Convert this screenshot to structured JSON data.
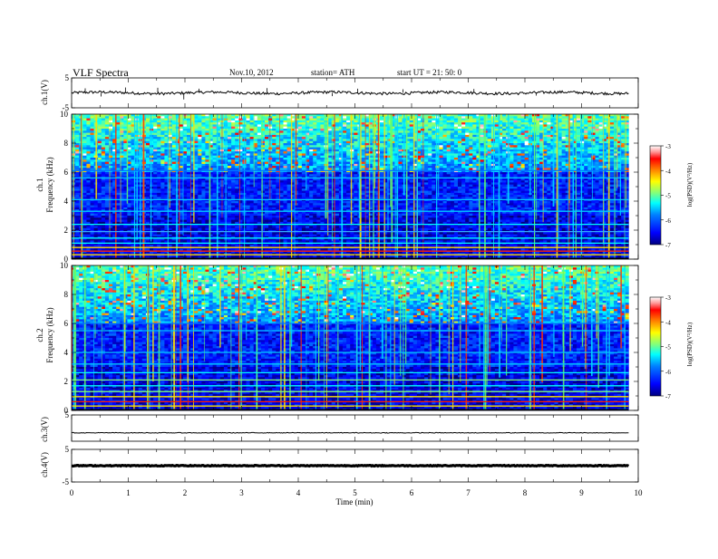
{
  "header": {
    "title": "VLF  Spectra",
    "date": "Nov.10, 2012",
    "station": "station= ATH",
    "start": "start  UT  =    21: 50: 0"
  },
  "labels": {
    "ch1": "ch.1(V)",
    "ch3": "ch.3(V)",
    "ch4": "ch.4(V)",
    "spec1_ch": "ch.1",
    "spec2_ch": "ch.2",
    "freq": "Frequency  (kHz)",
    "xlabel": "Time  (min)",
    "colorbar": "log(PSD)(V²/Hz)"
  },
  "colors": {
    "spectrogram_background": "#0a2c8c",
    "jet": [
      "#00007f",
      "#0000ff",
      "#007fff",
      "#00ffff",
      "#7fff7f",
      "#ffff00",
      "#ff7f00",
      "#ff0000",
      "#ff9999",
      "#ffffff"
    ]
  },
  "chart_data": [
    {
      "type": "line",
      "name": "ch1-waveform",
      "ylabel": "ch.1(V)",
      "ylim": [
        -5,
        5
      ],
      "yticks": [
        "5",
        "-5"
      ],
      "xlim": [
        0,
        10
      ],
      "data_end_min": 9.83,
      "baseline": 0,
      "spikes": [
        [
          0.24,
          1.5
        ],
        [
          0.52,
          -1.2
        ],
        [
          0.95,
          1.8
        ],
        [
          1.52,
          1.7
        ],
        [
          1.98,
          -2.2
        ],
        [
          2.25,
          1.4
        ],
        [
          3.45,
          1.6
        ],
        [
          4.6,
          -1.1
        ],
        [
          5.05,
          1.4
        ],
        [
          5.85,
          1.2
        ],
        [
          7.1,
          1.3
        ],
        [
          8.2,
          -0.9
        ]
      ]
    },
    {
      "type": "heatmap",
      "name": "ch1-spectrogram",
      "ylabel": "Frequency  (kHz)",
      "xlim": [
        0,
        10
      ],
      "ylim": [
        0,
        10
      ],
      "yticks": [
        "0",
        "2",
        "4",
        "6",
        "8",
        "10"
      ],
      "colorbar": {
        "label": "log(PSD)(V²/Hz)",
        "range": [
          -7,
          -3
        ],
        "ticks": [
          "-3",
          "-4",
          "-5",
          "-6",
          "-7"
        ]
      }
    },
    {
      "type": "heatmap",
      "name": "ch2-spectrogram",
      "ylabel": "Frequency  (kHz)",
      "xlim": [
        0,
        10
      ],
      "ylim": [
        0,
        10
      ],
      "yticks": [
        "0",
        "2",
        "4",
        "6",
        "8",
        "10"
      ],
      "colorbar": {
        "label": "log(PSD)(V²/Hz)",
        "range": [
          -7,
          -3
        ],
        "ticks": [
          "-3",
          "-4",
          "-5",
          "-6",
          "-7"
        ]
      }
    },
    {
      "type": "line",
      "name": "ch3-waveform",
      "ylabel": "ch.3(V)",
      "ylim": [
        -5,
        5
      ],
      "yticks": [
        "5"
      ],
      "xlim": [
        0,
        10
      ],
      "data_end_min": 9.83,
      "baseline": -1.8
    },
    {
      "type": "line",
      "name": "ch4-waveform",
      "ylabel": "ch.4(V)",
      "ylim": [
        -5,
        5
      ],
      "yticks": [
        "5",
        "-5"
      ],
      "xlim": [
        0,
        10
      ],
      "data_end_min": 9.83,
      "baseline": 0,
      "xlabel": "Time  (min)",
      "xticks": [
        "0",
        "1",
        "2",
        "3",
        "4",
        "5",
        "6",
        "7",
        "8",
        "9",
        "10"
      ]
    }
  ]
}
